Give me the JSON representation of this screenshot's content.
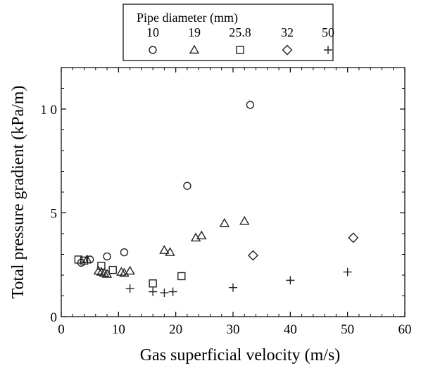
{
  "chart_data": {
    "type": "scatter",
    "xlabel": "Gas superficial velocity (m/s)",
    "ylabel": "Total pressure gradient (kPa/m)",
    "xlim": [
      0,
      60
    ],
    "ylim": [
      0,
      12
    ],
    "xticks": [
      0,
      10,
      20,
      30,
      40,
      50,
      60
    ],
    "yticks": [
      {
        "value": 0,
        "label": "0"
      },
      {
        "value": 5,
        "label": "5"
      },
      {
        "value": 10,
        "label": "1 0"
      }
    ],
    "grid": false,
    "legend": {
      "title": "Pipe diameter (mm)",
      "placement": "top-center"
    },
    "series": [
      {
        "name": "10",
        "marker": "circle",
        "points": [
          [
            3.5,
            2.6
          ],
          [
            5,
            2.75
          ],
          [
            8,
            2.9
          ],
          [
            11,
            3.1
          ],
          [
            22,
            6.3
          ],
          [
            33,
            10.2
          ]
        ]
      },
      {
        "name": "19",
        "marker": "triangle",
        "points": [
          [
            4.5,
            2.75
          ],
          [
            6.5,
            2.2
          ],
          [
            7,
            2.15
          ],
          [
            7.5,
            2.1
          ],
          [
            8,
            2.05
          ],
          [
            10.5,
            2.15
          ],
          [
            11,
            2.1
          ],
          [
            12,
            2.2
          ],
          [
            18,
            3.2
          ],
          [
            19,
            3.1
          ],
          [
            23.5,
            3.8
          ],
          [
            24.5,
            3.9
          ],
          [
            28.5,
            4.5
          ],
          [
            32,
            4.6
          ]
        ]
      },
      {
        "name": "25.8",
        "marker": "square",
        "points": [
          [
            3,
            2.75
          ],
          [
            4,
            2.7
          ],
          [
            7,
            2.45
          ],
          [
            9,
            2.25
          ],
          [
            16,
            1.6
          ],
          [
            21,
            1.95
          ]
        ]
      },
      {
        "name": "32",
        "marker": "diamond",
        "points": [
          [
            33.5,
            2.95
          ],
          [
            51,
            3.8
          ]
        ]
      },
      {
        "name": "50",
        "marker": "plus",
        "points": [
          [
            12,
            1.35
          ],
          [
            16,
            1.2
          ],
          [
            18,
            1.15
          ],
          [
            19.5,
            1.2
          ],
          [
            30,
            1.4
          ],
          [
            40,
            1.75
          ],
          [
            50,
            2.15
          ]
        ]
      }
    ]
  }
}
